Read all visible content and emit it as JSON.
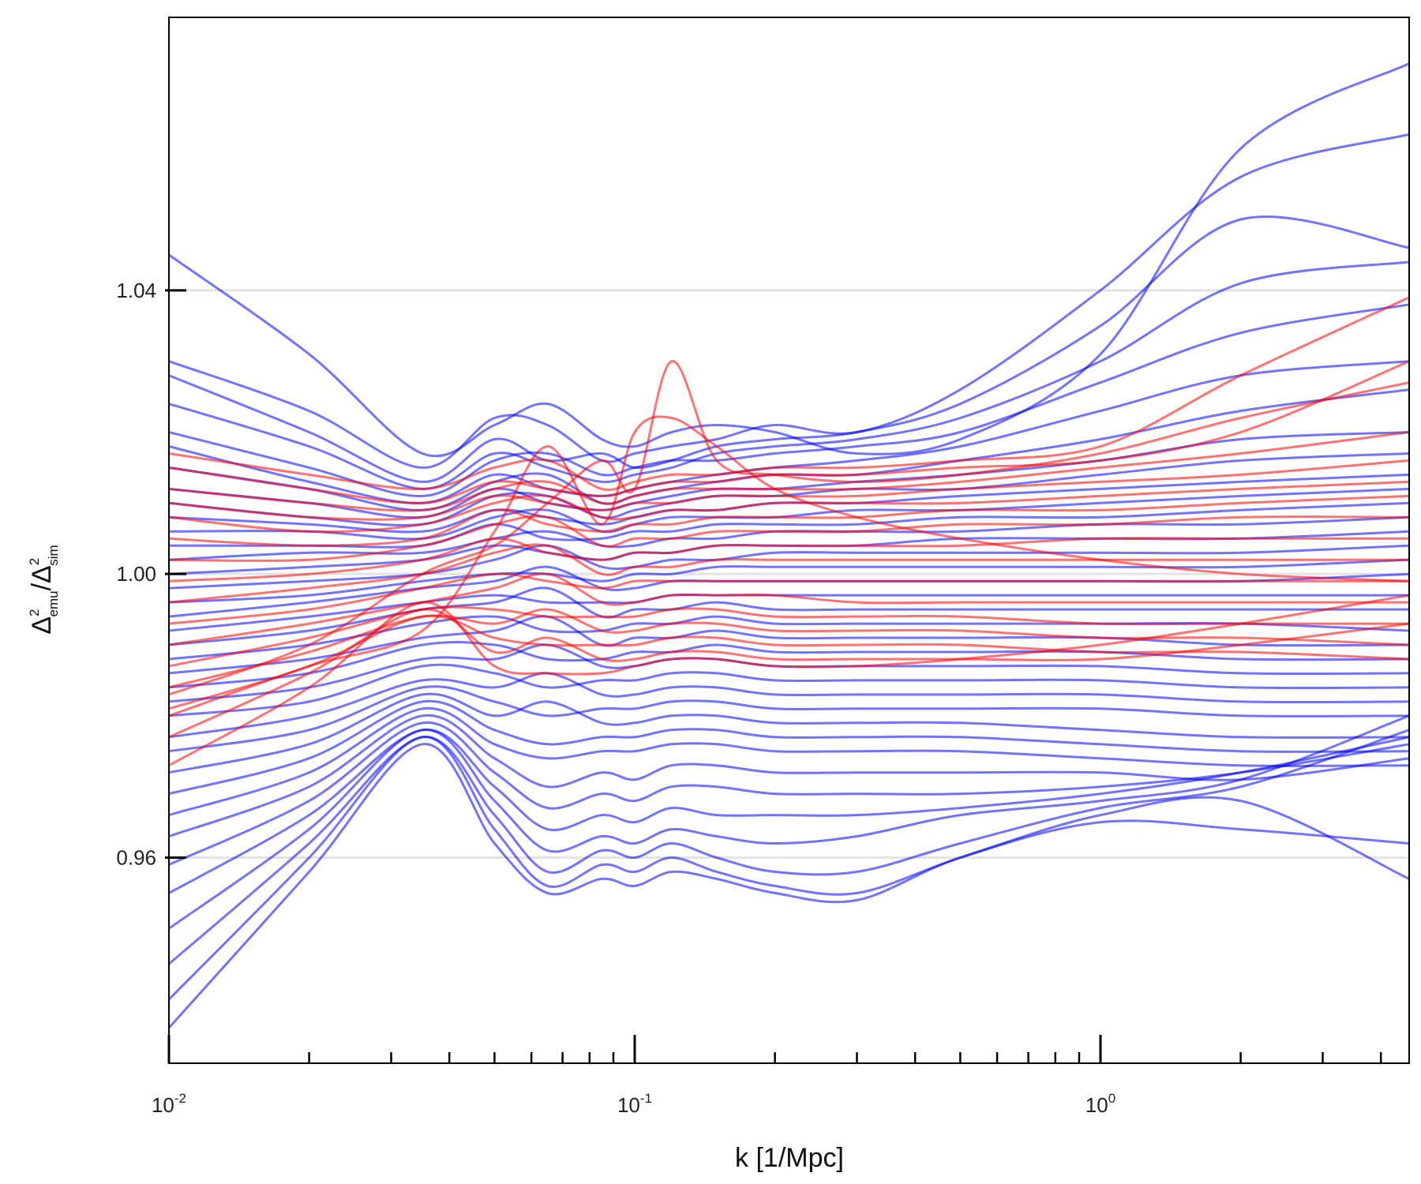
{
  "chart_data": {
    "type": "line",
    "title": "",
    "xlabel": "k [1/Mpc]",
    "ylabel": {
      "symbol": "Δ",
      "sup": "2",
      "num_sub": "emu",
      "slash": "/",
      "den_sub": "sim"
    },
    "xscale": "log",
    "xlim": [
      0.01,
      4.6
    ],
    "ylim": [
      0.931,
      1.0785
    ],
    "x_ticks": [
      {
        "value": 0.01,
        "base": "10",
        "exp": "-2"
      },
      {
        "value": 0.1,
        "base": "10",
        "exp": "-1"
      },
      {
        "value": 1,
        "base": "10",
        "exp": "0"
      }
    ],
    "y_ticks": [
      {
        "value": 0.96,
        "label": "0.96"
      },
      {
        "value": 1.0,
        "label": "1.00"
      },
      {
        "value": 1.04,
        "label": "1.04"
      }
    ],
    "grid": "horizontal lines at y ticks",
    "legend": "none",
    "colors": {
      "series_a": "#0000ff",
      "series_b": "#ff0000",
      "grid": "#e3e3e3",
      "axes": "#000000"
    },
    "k_samples": [
      0.01,
      0.02,
      0.035,
      0.05,
      0.065,
      0.085,
      0.1,
      0.12,
      0.15,
      0.2,
      0.3,
      0.5,
      1.0,
      2.0,
      4.6
    ],
    "series": [
      {
        "color": "blue",
        "values": [
          1.045,
          1.031,
          1.017,
          1.021,
          1.024,
          1.019,
          1.018,
          1.02,
          1.021,
          1.02,
          1.017,
          1.019,
          1.031,
          1.06,
          1.072
        ]
      },
      {
        "color": "blue",
        "values": [
          1.03,
          1.023,
          1.015,
          1.022,
          1.021,
          1.016,
          1.017,
          1.018,
          1.019,
          1.021,
          1.02,
          1.026,
          1.04,
          1.056,
          1.062
        ]
      },
      {
        "color": "blue",
        "values": [
          1.028,
          1.02,
          1.013,
          1.019,
          1.016,
          1.017,
          1.015,
          1.016,
          1.018,
          1.019,
          1.02,
          1.024,
          1.035,
          1.05,
          1.046
        ]
      },
      {
        "color": "blue",
        "values": [
          1.024,
          1.018,
          1.012,
          1.017,
          1.015,
          1.013,
          1.014,
          1.015,
          1.017,
          1.018,
          1.019,
          1.022,
          1.03,
          1.041,
          1.044
        ]
      },
      {
        "color": "blue",
        "values": [
          1.02,
          1.015,
          1.011,
          1.016,
          1.017,
          1.014,
          1.015,
          1.016,
          1.016,
          1.017,
          1.018,
          1.02,
          1.027,
          1.034,
          1.038
        ]
      },
      {
        "color": "blue",
        "values": [
          1.018,
          1.013,
          1.01,
          1.014,
          1.012,
          1.011,
          1.012,
          1.013,
          1.014,
          1.015,
          1.016,
          1.018,
          1.023,
          1.028,
          1.03
        ]
      },
      {
        "color": "blue",
        "values": [
          1.015,
          1.012,
          1.009,
          1.013,
          1.014,
          1.01,
          1.011,
          1.012,
          1.013,
          1.014,
          1.014,
          1.016,
          1.019,
          1.023,
          1.026
        ]
      },
      {
        "color": "blue",
        "values": [
          1.012,
          1.01,
          1.008,
          1.012,
          1.01,
          1.009,
          1.01,
          1.011,
          1.012,
          1.012,
          1.013,
          1.014,
          1.016,
          1.019,
          1.02
        ]
      },
      {
        "color": "blue",
        "values": [
          1.01,
          1.008,
          1.007,
          1.011,
          1.011,
          1.008,
          1.009,
          1.01,
          1.011,
          1.011,
          1.012,
          1.012,
          1.014,
          1.016,
          1.017
        ]
      },
      {
        "color": "blue",
        "values": [
          1.008,
          1.007,
          1.006,
          1.009,
          1.008,
          1.007,
          1.008,
          1.009,
          1.009,
          1.01,
          1.01,
          1.011,
          1.012,
          1.013,
          1.014
        ]
      },
      {
        "color": "blue",
        "values": [
          1.006,
          1.006,
          1.005,
          1.008,
          1.009,
          1.006,
          1.007,
          1.008,
          1.008,
          1.008,
          1.009,
          1.009,
          1.01,
          1.011,
          1.012
        ]
      },
      {
        "color": "blue",
        "values": [
          1.004,
          1.004,
          1.004,
          1.007,
          1.005,
          1.005,
          1.006,
          1.006,
          1.007,
          1.007,
          1.007,
          1.008,
          1.008,
          1.009,
          1.01
        ]
      },
      {
        "color": "blue",
        "values": [
          1.002,
          1.003,
          1.003,
          1.005,
          1.006,
          1.004,
          1.004,
          1.005,
          1.005,
          1.006,
          1.006,
          1.006,
          1.007,
          1.007,
          1.008
        ]
      },
      {
        "color": "blue",
        "values": [
          1.0,
          1.001,
          1.002,
          1.004,
          1.003,
          1.002,
          1.003,
          1.003,
          1.004,
          1.004,
          1.004,
          1.005,
          1.005,
          1.005,
          1.006
        ]
      },
      {
        "color": "blue",
        "values": [
          0.998,
          0.999,
          1.0,
          1.002,
          1.004,
          1.001,
          1.001,
          1.002,
          1.002,
          1.003,
          1.003,
          1.003,
          1.003,
          1.003,
          1.004
        ]
      },
      {
        "color": "blue",
        "values": [
          0.996,
          0.997,
          0.999,
          1.0,
          1.0,
          0.999,
          1.0,
          1.0,
          1.001,
          1.001,
          1.001,
          1.001,
          1.001,
          1.001,
          1.002
        ]
      },
      {
        "color": "blue",
        "values": [
          0.994,
          0.996,
          0.998,
          0.999,
          1.001,
          0.998,
          0.998,
          0.999,
          0.999,
          0.999,
          0.999,
          0.999,
          0.999,
          0.999,
          1.0
        ]
      },
      {
        "color": "blue",
        "values": [
          0.992,
          0.994,
          0.996,
          0.997,
          0.996,
          0.996,
          0.996,
          0.997,
          0.997,
          0.997,
          0.997,
          0.997,
          0.997,
          0.997,
          0.997
        ]
      },
      {
        "color": "blue",
        "values": [
          0.99,
          0.992,
          0.995,
          0.996,
          0.998,
          0.994,
          0.995,
          0.995,
          0.996,
          0.995,
          0.995,
          0.995,
          0.995,
          0.995,
          0.995
        ]
      },
      {
        "color": "blue",
        "values": [
          0.988,
          0.99,
          0.993,
          0.994,
          0.992,
          0.992,
          0.993,
          0.993,
          0.994,
          0.993,
          0.993,
          0.993,
          0.993,
          0.993,
          0.992
        ]
      },
      {
        "color": "blue",
        "values": [
          0.986,
          0.988,
          0.991,
          0.992,
          0.994,
          0.99,
          0.991,
          0.991,
          0.992,
          0.991,
          0.991,
          0.991,
          0.991,
          0.99,
          0.99
        ]
      },
      {
        "color": "blue",
        "values": [
          0.984,
          0.986,
          0.99,
          0.99,
          0.988,
          0.988,
          0.989,
          0.989,
          0.99,
          0.989,
          0.989,
          0.989,
          0.989,
          0.988,
          0.988
        ]
      },
      {
        "color": "blue",
        "values": [
          0.982,
          0.984,
          0.988,
          0.988,
          0.99,
          0.987,
          0.987,
          0.988,
          0.988,
          0.987,
          0.987,
          0.987,
          0.987,
          0.986,
          0.986
        ]
      },
      {
        "color": "blue",
        "values": [
          0.98,
          0.982,
          0.987,
          0.986,
          0.984,
          0.985,
          0.985,
          0.986,
          0.986,
          0.985,
          0.985,
          0.985,
          0.985,
          0.984,
          0.984
        ]
      },
      {
        "color": "blue",
        "values": [
          0.977,
          0.98,
          0.985,
          0.984,
          0.986,
          0.983,
          0.983,
          0.984,
          0.984,
          0.983,
          0.983,
          0.983,
          0.983,
          0.982,
          0.982
        ]
      },
      {
        "color": "blue",
        "values": [
          0.975,
          0.978,
          0.984,
          0.982,
          0.98,
          0.981,
          0.981,
          0.982,
          0.982,
          0.981,
          0.981,
          0.981,
          0.981,
          0.98,
          0.98
        ]
      },
      {
        "color": "blue",
        "values": [
          0.972,
          0.976,
          0.983,
          0.98,
          0.982,
          0.979,
          0.979,
          0.98,
          0.98,
          0.979,
          0.979,
          0.979,
          0.978,
          0.977,
          0.977
        ]
      },
      {
        "color": "blue",
        "values": [
          0.969,
          0.974,
          0.982,
          0.978,
          0.976,
          0.977,
          0.977,
          0.978,
          0.978,
          0.977,
          0.977,
          0.977,
          0.976,
          0.975,
          0.975
        ]
      },
      {
        "color": "blue",
        "values": [
          0.966,
          0.972,
          0.981,
          0.976,
          0.974,
          0.975,
          0.975,
          0.976,
          0.976,
          0.975,
          0.975,
          0.975,
          0.974,
          0.973,
          0.973
        ]
      },
      {
        "color": "blue",
        "values": [
          0.963,
          0.97,
          0.98,
          0.974,
          0.97,
          0.972,
          0.971,
          0.973,
          0.973,
          0.972,
          0.972,
          0.972,
          0.972,
          0.971,
          0.974
        ]
      },
      {
        "color": "blue",
        "values": [
          0.959,
          0.968,
          0.979,
          0.972,
          0.967,
          0.969,
          0.968,
          0.97,
          0.97,
          0.969,
          0.969,
          0.969,
          0.97,
          0.972,
          0.976
        ]
      },
      {
        "color": "blue",
        "values": [
          0.955,
          0.966,
          0.978,
          0.97,
          0.964,
          0.966,
          0.965,
          0.967,
          0.966,
          0.966,
          0.966,
          0.967,
          0.969,
          0.972,
          0.977
        ]
      },
      {
        "color": "blue",
        "values": [
          0.95,
          0.964,
          0.978,
          0.968,
          0.961,
          0.963,
          0.962,
          0.964,
          0.963,
          0.962,
          0.963,
          0.966,
          0.968,
          0.971,
          0.98
        ]
      },
      {
        "color": "blue",
        "values": [
          0.945,
          0.962,
          0.977,
          0.966,
          0.958,
          0.961,
          0.96,
          0.962,
          0.96,
          0.958,
          0.958,
          0.962,
          0.967,
          0.97,
          0.978
        ]
      },
      {
        "color": "blue",
        "values": [
          0.94,
          0.96,
          0.977,
          0.964,
          0.956,
          0.959,
          0.958,
          0.96,
          0.958,
          0.956,
          0.955,
          0.96,
          0.966,
          0.968,
          0.957
        ]
      },
      {
        "color": "blue",
        "values": [
          0.936,
          0.958,
          0.976,
          0.962,
          0.955,
          0.957,
          0.956,
          0.958,
          0.957,
          0.955,
          0.954,
          0.96,
          0.965,
          0.964,
          0.962
        ]
      },
      {
        "color": "red",
        "values": [
          1.017,
          1.014,
          1.012,
          1.015,
          1.016,
          1.012,
          1.013,
          1.014,
          1.014,
          1.015,
          1.015,
          1.016,
          1.018,
          1.028,
          1.039
        ]
      },
      {
        "color": "red",
        "values": [
          1.015,
          1.012,
          1.01,
          1.013,
          1.012,
          1.011,
          1.012,
          1.013,
          1.013,
          1.014,
          1.014,
          1.015,
          1.016,
          1.02,
          1.03
        ]
      },
      {
        "color": "red",
        "values": [
          1.012,
          1.01,
          1.009,
          1.012,
          1.013,
          1.01,
          1.011,
          1.012,
          1.012,
          1.012,
          1.012,
          1.013,
          1.015,
          1.017,
          1.02
        ]
      },
      {
        "color": "red",
        "values": [
          1.01,
          1.008,
          1.008,
          1.011,
          1.01,
          1.009,
          1.01,
          1.01,
          1.011,
          1.011,
          1.011,
          1.012,
          1.013,
          1.014,
          1.016
        ]
      },
      {
        "color": "red",
        "values": [
          1.008,
          1.006,
          1.007,
          1.01,
          1.011,
          1.008,
          1.008,
          1.009,
          1.009,
          1.01,
          1.01,
          1.01,
          1.011,
          1.012,
          1.013
        ]
      },
      {
        "color": "red",
        "values": [
          1.005,
          1.004,
          1.005,
          1.009,
          1.007,
          1.006,
          1.007,
          1.007,
          1.008,
          1.008,
          1.008,
          1.009,
          1.009,
          1.01,
          1.011
        ]
      },
      {
        "color": "red",
        "values": [
          1.002,
          1.002,
          1.004,
          1.007,
          1.008,
          1.004,
          1.005,
          1.005,
          1.006,
          1.006,
          1.006,
          1.007,
          1.007,
          1.008,
          1.008
        ]
      },
      {
        "color": "red",
        "values": [
          0.999,
          1.0,
          1.002,
          1.005,
          1.003,
          1.002,
          1.003,
          1.003,
          1.004,
          1.004,
          1.004,
          1.004,
          1.005,
          1.005,
          1.005
        ]
      },
      {
        "color": "red",
        "values": [
          0.996,
          0.998,
          1.0,
          1.003,
          1.004,
          1.0,
          1.001,
          1.001,
          1.002,
          1.002,
          1.002,
          1.002,
          1.002,
          1.002,
          1.002
        ]
      },
      {
        "color": "red",
        "values": [
          0.993,
          0.995,
          0.998,
          1.0,
          0.999,
          0.998,
          0.999,
          0.999,
          0.999,
          0.999,
          0.999,
          0.999,
          0.999,
          0.999,
          0.999
        ]
      },
      {
        "color": "red",
        "values": [
          0.99,
          0.993,
          0.996,
          0.998,
          1.0,
          0.996,
          0.996,
          0.997,
          0.997,
          0.997,
          0.996,
          0.996,
          0.996,
          0.996,
          0.996
        ]
      },
      {
        "color": "red",
        "values": [
          0.987,
          0.991,
          0.995,
          0.995,
          0.994,
          0.994,
          0.994,
          0.995,
          0.995,
          0.994,
          0.994,
          0.994,
          0.993,
          0.993,
          0.993
        ]
      },
      {
        "color": "red",
        "values": [
          0.984,
          0.989,
          0.994,
          0.993,
          0.995,
          0.992,
          0.992,
          0.993,
          0.993,
          0.992,
          0.992,
          0.992,
          0.991,
          0.991,
          0.99
        ]
      },
      {
        "color": "red",
        "values": [
          0.981,
          0.987,
          0.994,
          0.991,
          0.99,
          0.99,
          0.99,
          0.991,
          0.991,
          0.99,
          0.99,
          0.99,
          0.989,
          0.989,
          0.988
        ]
      },
      {
        "color": "red",
        "values": [
          0.977,
          0.986,
          0.995,
          0.989,
          0.991,
          0.988,
          0.988,
          0.989,
          0.989,
          0.988,
          0.988,
          0.988,
          0.988,
          0.99,
          0.993
        ]
      },
      {
        "color": "red",
        "values": [
          0.973,
          0.984,
          0.996,
          0.987,
          0.986,
          0.986,
          0.987,
          0.988,
          0.988,
          0.987,
          0.987,
          0.988,
          0.99,
          0.993,
          0.997
        ]
      },
      {
        "color": "red",
        "values": [
          0.98,
          0.987,
          0.992,
          1.006,
          1.018,
          1.007,
          1.02,
          1.022,
          1.018,
          1.012,
          1.008,
          1.005,
          1.002,
          1.0,
          0.999
        ]
      },
      {
        "color": "red",
        "values": [
          0.983,
          0.99,
          1.0,
          1.004,
          1.01,
          1.016,
          1.012,
          1.03,
          1.016,
          1.014,
          1.013,
          1.014,
          1.017,
          1.022,
          1.027
        ]
      }
    ]
  }
}
